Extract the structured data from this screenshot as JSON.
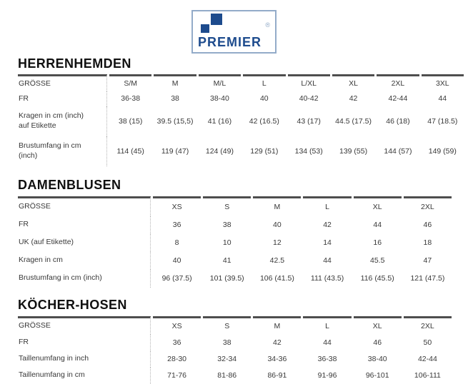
{
  "logo": {
    "text": "PREMIER",
    "registered_mark": "®",
    "brand_color": "#1d4b8d",
    "border_color": "#93abc9"
  },
  "sections": [
    {
      "id": "herrenhemden",
      "heading": "HERRENHEMDEN",
      "rows": [
        [
          "GRÖSSE",
          "S/M",
          "M",
          "M/L",
          "L",
          "L/XL",
          "XL",
          "2XL",
          "3XL"
        ],
        [
          "FR",
          "36-38",
          "38",
          "38-40",
          "40",
          "40-42",
          "42",
          "42-44",
          "44"
        ],
        [
          "Kragen in cm (inch)\nauf Etikette",
          "38 (15)",
          "39.5 (15,5)",
          "41 (16)",
          "42 (16.5)",
          "43 (17)",
          "44.5 (17.5)",
          "46 (18)",
          "47 (18.5)"
        ],
        [
          "Brustumfang in cm\n(inch)",
          "114 (45)",
          "119 (47)",
          "124 (49)",
          "129 (51)",
          "134 (53)",
          "139 (55)",
          "144 (57)",
          "149 (59)"
        ]
      ]
    },
    {
      "id": "damenblusen",
      "heading": "DAMENBLUSEN",
      "rows": [
        [
          "GRÖSSE",
          "XS",
          "S",
          "M",
          "L",
          "XL",
          "2XL"
        ],
        [
          "FR",
          "36",
          "38",
          "40",
          "42",
          "44",
          "46"
        ],
        [
          "UK (auf Etikette)",
          "8",
          "10",
          "12",
          "14",
          "16",
          "18"
        ],
        [
          "Kragen in cm",
          "40",
          "41",
          "42.5",
          "44",
          "45.5",
          "47"
        ],
        [
          "Brustumfang in cm (inch)",
          "96 (37.5)",
          "101 (39.5)",
          "106 (41.5)",
          "111 (43.5)",
          "116 (45.5)",
          "121 (47.5)"
        ]
      ]
    },
    {
      "id": "koecher-hosen",
      "heading": "KÖCHER-HOSEN",
      "rows": [
        [
          "GRÖSSE",
          "XS",
          "S",
          "M",
          "L",
          "XL",
          "2XL"
        ],
        [
          "FR",
          "36",
          "38",
          "42",
          "44",
          "46",
          "50"
        ],
        [
          "Taillenumfang in inch",
          "28-30",
          "32-34",
          "34-36",
          "36-38",
          "38-40",
          "42-44"
        ],
        [
          "Taillenumfang in cm",
          "71-76",
          "81-86",
          "86-91",
          "91-96",
          "96-101",
          "106-111"
        ]
      ]
    }
  ]
}
